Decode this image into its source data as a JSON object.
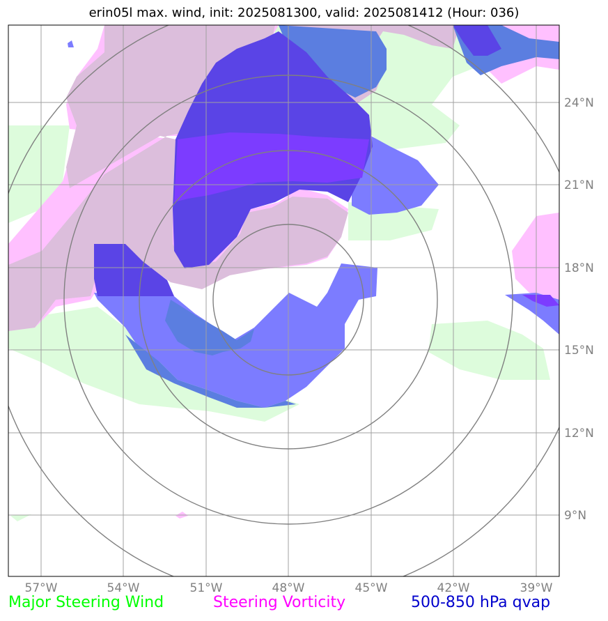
{
  "header": {
    "title": "erin05l max. wind, init: 2025081300, valid: 2025081412 (Hour: 036)"
  },
  "map": {
    "lat_labels": [
      "24°N",
      "21°N",
      "18°N",
      "15°N",
      "12°N",
      "9°N"
    ],
    "lon_labels": [
      "57°W",
      "54°W",
      "51°W",
      "48°W",
      "45°W",
      "42°W",
      "39°W"
    ],
    "colors": {
      "steering_wind": "#ddfcdc",
      "steering_vorticity": "#ffc0ff",
      "vorticity_overlap": "#dcbedc",
      "qvap_light": "#7c7cff",
      "qvap_mid": "#5b7ee0",
      "qvap_dark": "#5a44e6",
      "qvap_deep": "#7c3cff",
      "grid": "#a0a0a0",
      "range_rings": "#808080"
    }
  },
  "legend": {
    "wind": {
      "label": "Major Steering Wind",
      "color": "#00ff00"
    },
    "vorticity": {
      "label": "Steering Vorticity",
      "color": "#ff00ff"
    },
    "qvap": {
      "label": "500-850 hPa qvap",
      "color": "#0000cc"
    }
  }
}
